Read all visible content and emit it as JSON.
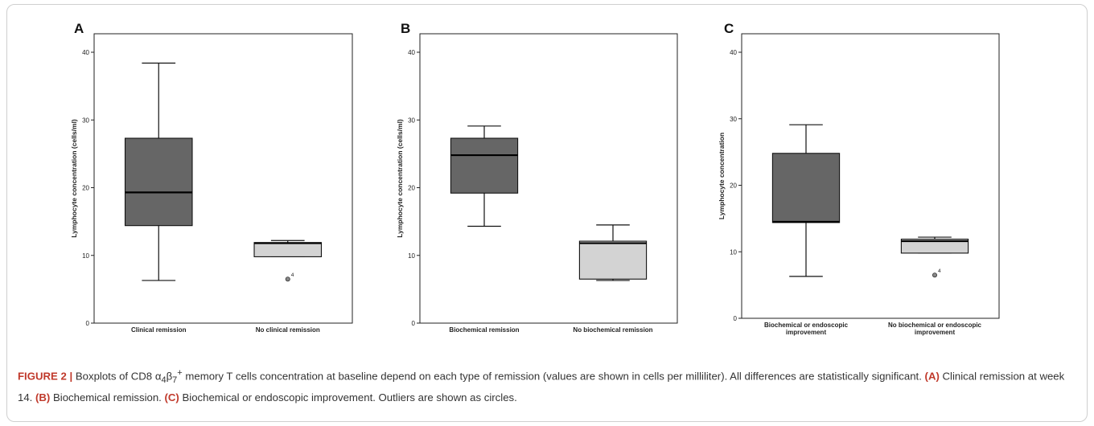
{
  "figure": {
    "panels": [
      {
        "letter": "A"
      },
      {
        "letter": "B"
      },
      {
        "letter": "C"
      }
    ],
    "caption": {
      "figure_label": "FIGURE 2 |",
      "text_1": " Boxplots of CD8 ",
      "subscript_4": "4",
      "subscript_7": "7",
      "text_2": " memory T cells concentration at baseline depend on each type of remission (values are shown in cells per milliliter). All differences are statistically significant. ",
      "label_a": "(A)",
      "text_a": " Clinical remission at week 14. ",
      "label_b": "(B)",
      "text_b": " Biochemical remission. ",
      "label_c": "(C)",
      "text_c": " Biochemical or endoscopic improvement. Outliers are shown as circles."
    }
  },
  "colors": {
    "box_dark": "#666666",
    "box_light": "#d3d3d3",
    "frame_border": "#cfcfcf",
    "caption_accent": "#c0392b"
  },
  "chart_data": [
    {
      "type": "boxplot",
      "panel": "A",
      "ylabel": "Lymphocyte concentration (cells/ml)",
      "ylim": [
        0,
        40
      ],
      "yticks": [
        0,
        10,
        20,
        30,
        40
      ],
      "categories": [
        "Clinical remission",
        "No clinical remission"
      ],
      "boxes": [
        {
          "min": 6.3,
          "q1": 14.4,
          "median": 19.3,
          "q3": 27.3,
          "max": 38.4,
          "fill": "#666666"
        },
        {
          "min": 9.8,
          "q1": 9.8,
          "median": 11.8,
          "q3": 11.9,
          "max": 12.2,
          "fill": "#d3d3d3",
          "outliers": [
            {
              "value": 6.5,
              "label": "4"
            }
          ]
        }
      ]
    },
    {
      "type": "boxplot",
      "panel": "B",
      "ylabel": "Lymphocyte concentration (cells/ml)",
      "ylim": [
        0,
        40
      ],
      "yticks": [
        0,
        10,
        20,
        30,
        40
      ],
      "categories": [
        "Biochemical remission",
        "No biochemical remission"
      ],
      "boxes": [
        {
          "min": 14.3,
          "q1": 19.2,
          "median": 24.8,
          "q3": 27.3,
          "max": 29.1,
          "fill": "#666666"
        },
        {
          "min": 6.3,
          "q1": 6.5,
          "median": 11.8,
          "q3": 12.1,
          "max": 14.5,
          "fill": "#d3d3d3"
        }
      ]
    },
    {
      "type": "boxplot",
      "panel": "C",
      "ylabel": "Lymphocyte concentration",
      "ylim": [
        0,
        40
      ],
      "yticks": [
        0,
        10,
        20,
        30,
        40
      ],
      "categories": [
        "Biochemical or endoscopic improvement",
        "No biochemical or endoscopic improvement"
      ],
      "boxes": [
        {
          "min": 6.3,
          "q1": 14.4,
          "median": 14.5,
          "q3": 24.8,
          "max": 29.1,
          "fill": "#666666"
        },
        {
          "min": 9.8,
          "q1": 9.8,
          "median": 11.6,
          "q3": 11.9,
          "max": 12.2,
          "fill": "#d3d3d3",
          "outliers": [
            {
              "value": 6.5,
              "label": "4"
            }
          ]
        }
      ]
    }
  ]
}
